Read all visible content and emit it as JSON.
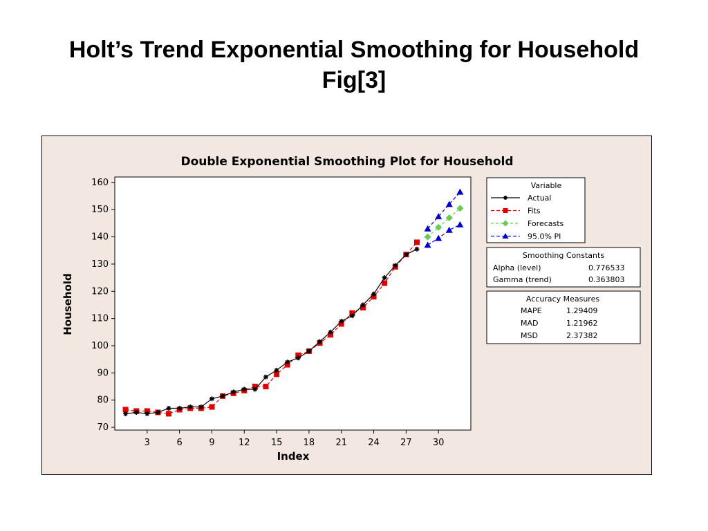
{
  "slide": {
    "title_line1": "Holt’s Trend Exponential Smoothing for Household",
    "title_line2": "Fig[3]"
  },
  "colors": {
    "background": "#f3e8e1",
    "actual": "#000000",
    "fits": "#e00000",
    "forecasts": "#66cc55",
    "pi": "#0000cc"
  },
  "chart_data": {
    "type": "line",
    "title": "Double Exponential Smoothing Plot for Household",
    "xlabel": "Index",
    "ylabel": "Household",
    "xlim": [
      0,
      33
    ],
    "ylim": [
      69,
      162
    ],
    "xticks": [
      3,
      6,
      9,
      12,
      15,
      18,
      21,
      24,
      27,
      30
    ],
    "yticks": [
      70,
      80,
      90,
      100,
      110,
      120,
      130,
      140,
      150,
      160
    ],
    "grid": false,
    "legend_placement": "right",
    "legend_title": "Variable",
    "series": [
      {
        "name": "Actual",
        "x": [
          1,
          2,
          3,
          4,
          5,
          6,
          7,
          8,
          9,
          10,
          11,
          12,
          13,
          14,
          15,
          16,
          17,
          18,
          19,
          20,
          21,
          22,
          23,
          24,
          25,
          26,
          27,
          28
        ],
        "values": [
          75,
          75.5,
          75,
          75.5,
          77,
          77,
          77.5,
          77.5,
          80.5,
          81.5,
          83,
          84,
          84,
          88.5,
          91,
          94,
          95.5,
          98,
          101.5,
          105,
          109,
          111,
          115,
          119,
          125,
          129.5,
          133.5,
          135.5
        ]
      },
      {
        "name": "Fits",
        "x": [
          1,
          2,
          3,
          4,
          5,
          6,
          7,
          8,
          9,
          10,
          11,
          12,
          13,
          14,
          15,
          16,
          17,
          18,
          19,
          20,
          21,
          22,
          23,
          24,
          25,
          26,
          27,
          28
        ],
        "values": [
          76.5,
          76,
          76,
          75.5,
          75,
          76.5,
          77,
          77,
          77.5,
          81.5,
          82.5,
          83.5,
          85,
          85,
          89.5,
          93,
          96.5,
          98,
          101,
          104,
          108,
          112,
          114,
          118,
          123,
          129,
          133.5,
          138
        ]
      },
      {
        "name": "Forecasts",
        "x": [
          29,
          30,
          31,
          32
        ],
        "values": [
          140,
          143.5,
          147,
          150.5
        ]
      },
      {
        "name": "95.0% PI",
        "x": [
          29,
          30,
          31,
          32
        ],
        "upper": [
          143,
          147.5,
          152,
          156.5
        ],
        "lower": [
          137,
          139.5,
          142.5,
          144.5
        ]
      }
    ],
    "smoothing_constants": {
      "title": "Smoothing Constants",
      "rows": [
        {
          "label": "Alpha (level)",
          "value": "0.776533"
        },
        {
          "label": "Gamma (trend)",
          "value": "0.363803"
        }
      ]
    },
    "accuracy_measures": {
      "title": "Accuracy Measures",
      "rows": [
        {
          "label": "MAPE",
          "value": "1.29409"
        },
        {
          "label": "MAD",
          "value": "1.21962"
        },
        {
          "label": "MSD",
          "value": "2.37382"
        }
      ]
    }
  }
}
